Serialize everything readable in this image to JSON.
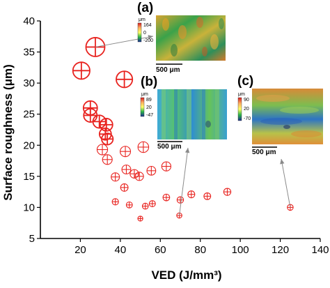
{
  "chart_data": {
    "type": "scatter",
    "xlabel": "VED (J/mm³)",
    "ylabel": "Surface roughness (μm)",
    "xlim": [
      0,
      140
    ],
    "ylim": [
      5,
      40
    ],
    "x_ticks": [
      "20",
      "40",
      "60",
      "80",
      "100",
      "120",
      "140"
    ],
    "y_ticks": [
      "5",
      "10",
      "15",
      "20",
      "25",
      "30",
      "35",
      "40"
    ],
    "grid": false,
    "marker_color": "#e8231f",
    "marker": "circled-plus, size proportional to roughness",
    "points": [
      {
        "x": 20.5,
        "y": 32.0
      },
      {
        "x": 27.5,
        "y": 35.8
      },
      {
        "x": 42.0,
        "y": 30.6
      },
      {
        "x": 25.0,
        "y": 26.0
      },
      {
        "x": 25.0,
        "y": 24.8
      },
      {
        "x": 29.5,
        "y": 23.8
      },
      {
        "x": 33.0,
        "y": 23.3
      },
      {
        "x": 32.5,
        "y": 21.8
      },
      {
        "x": 33.5,
        "y": 21.0
      },
      {
        "x": 31.0,
        "y": 19.3
      },
      {
        "x": 42.5,
        "y": 19.0
      },
      {
        "x": 51.5,
        "y": 19.7
      },
      {
        "x": 33.5,
        "y": 17.7
      },
      {
        "x": 43.0,
        "y": 16.1
      },
      {
        "x": 47.0,
        "y": 15.4
      },
      {
        "x": 49.5,
        "y": 15.0
      },
      {
        "x": 55.5,
        "y": 15.9
      },
      {
        "x": 63.0,
        "y": 16.6
      },
      {
        "x": 37.5,
        "y": 14.9
      },
      {
        "x": 42.0,
        "y": 13.2
      },
      {
        "x": 37.5,
        "y": 10.9
      },
      {
        "x": 44.5,
        "y": 10.4
      },
      {
        "x": 52.5,
        "y": 10.2
      },
      {
        "x": 56.0,
        "y": 10.6
      },
      {
        "x": 63.0,
        "y": 11.6
      },
      {
        "x": 70.0,
        "y": 11.2
      },
      {
        "x": 75.5,
        "y": 12.1
      },
      {
        "x": 83.5,
        "y": 11.8
      },
      {
        "x": 93.5,
        "y": 12.5
      },
      {
        "x": 50.0,
        "y": 8.2
      },
      {
        "x": 69.5,
        "y": 8.7
      },
      {
        "x": 125.0,
        "y": 10.0
      }
    ],
    "insets": [
      {
        "label": "(a)",
        "unit": "μm",
        "cbar_ticks": [
          "164",
          "0",
          "-200"
        ],
        "scale_bar": "500 μm",
        "points_to": {
          "x": 27.5,
          "y": 35.8
        }
      },
      {
        "label": "(b)",
        "unit": "μm",
        "cbar_ticks": [
          "89",
          "20",
          "-47"
        ],
        "scale_bar": "500 μm",
        "points_to": {
          "x": 69.5,
          "y": 8.7
        }
      },
      {
        "label": "(c)",
        "unit": "μm",
        "cbar_ticks": [
          "90",
          "20",
          "-70"
        ],
        "scale_bar": "500 μm",
        "points_to": {
          "x": 125.0,
          "y": 10.0
        }
      }
    ]
  }
}
